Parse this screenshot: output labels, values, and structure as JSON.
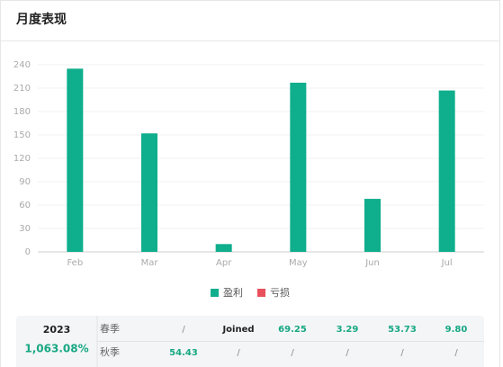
{
  "header": {
    "title": "月度表现"
  },
  "chart_data": {
    "type": "bar",
    "categories": [
      "Feb",
      "Mar",
      "Apr",
      "May",
      "Jun",
      "Jul"
    ],
    "series": [
      {
        "name": "盈利",
        "color": "#0fae8c",
        "values": [
          235,
          152,
          10,
          217,
          68,
          207
        ]
      },
      {
        "name": "亏损",
        "color": "#e8505b",
        "values": [
          null,
          null,
          null,
          null,
          null,
          null
        ]
      }
    ],
    "ylim": [
      0,
      240
    ],
    "yticks": [
      0,
      30,
      60,
      90,
      120,
      150,
      180,
      210,
      240
    ],
    "grid": true,
    "legend": "bottom"
  },
  "table": {
    "year": "2023",
    "total": "1,063.08%",
    "rows": [
      [
        "春季",
        "/",
        "Joined",
        "69.25",
        "3.29",
        "53.73",
        "9.80"
      ],
      [
        "秋季",
        "54.43",
        "/",
        "/",
        "/",
        "/",
        "/"
      ]
    ]
  }
}
